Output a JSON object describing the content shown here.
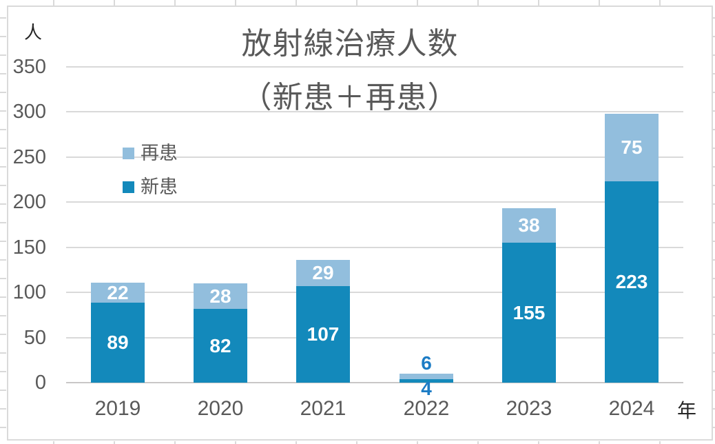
{
  "chart": {
    "title_line1": "放射線治療人数",
    "title_line2": "（新患＋再患）",
    "y_unit": "人",
    "x_unit": "年"
  },
  "chart_data": {
    "type": "bar",
    "stacked": true,
    "title": "放射線治療人数（新患＋再患）",
    "categories": [
      "2019",
      "2020",
      "2021",
      "2022",
      "2023",
      "2024"
    ],
    "series": [
      {
        "name": "新患",
        "color": "#1389BB",
        "values": [
          89,
          82,
          107,
          4,
          155,
          223
        ]
      },
      {
        "name": "再患",
        "color": "#92BEDD",
        "values": [
          22,
          28,
          29,
          6,
          38,
          75
        ]
      }
    ],
    "ylabel": "人",
    "xlabel": "年",
    "ylim": [
      0,
      350
    ],
    "y_ticks": [
      0,
      50,
      100,
      150,
      200,
      250,
      300,
      350
    ],
    "grid": true,
    "legend_position": "inside-upper-left",
    "legend_order": [
      "再患",
      "新患"
    ],
    "colors": {
      "grid": "#D9D9D9",
      "axis": "#C9C7C7",
      "tick_text": "#595959",
      "title_text": "#595959",
      "data_label_inside": "#FFFFFF",
      "data_label_outside": "#1C7CC5",
      "chart_border": "#DADADA"
    }
  }
}
